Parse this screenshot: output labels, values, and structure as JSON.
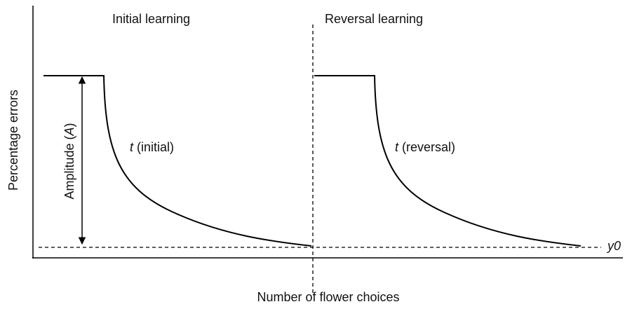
{
  "left_panel": {
    "title": "Initial learning",
    "curve_label": {
      "symbol": "t",
      "text": "(initial)"
    }
  },
  "right_panel": {
    "title": "Reversal learning",
    "curve_label": {
      "symbol": "t",
      "text": "(reversal)"
    }
  },
  "y_axis_label": "Percentage errors",
  "x_axis_label": "Number of flower choices",
  "amplitude_label": {
    "prefix": "Amplitude (",
    "symbol": "A",
    "suffix": ")"
  },
  "asymptote_label": "y0"
}
